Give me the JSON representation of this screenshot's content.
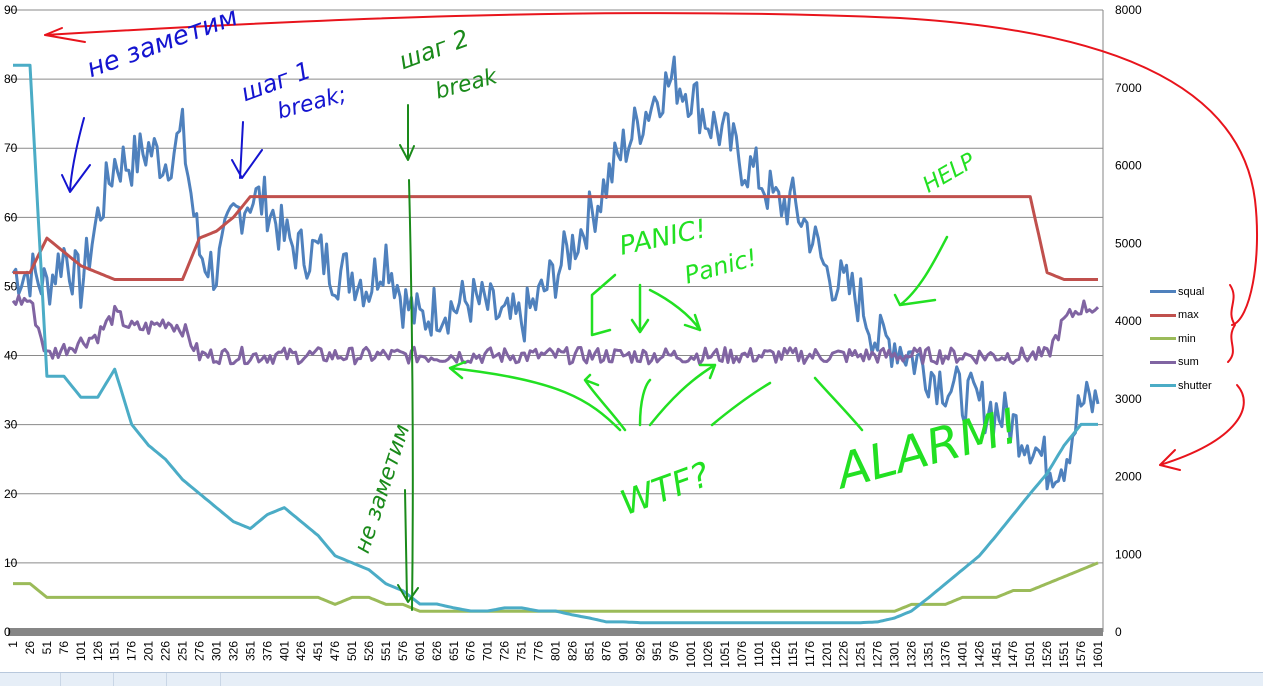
{
  "chart_data": {
    "type": "line",
    "title": "",
    "xlabel": "",
    "ylabel": "",
    "y2label": "",
    "ylim": [
      0,
      90
    ],
    "y2lim": [
      0,
      8000
    ],
    "yticks": [
      0,
      10,
      20,
      30,
      40,
      50,
      60,
      70,
      80,
      90
    ],
    "y2ticks": [
      0,
      1000,
      2000,
      3000,
      4000,
      5000,
      6000,
      7000,
      8000
    ],
    "grid": true,
    "legend_position": "right",
    "categories": [
      1,
      26,
      51,
      76,
      101,
      126,
      151,
      176,
      201,
      226,
      251,
      276,
      301,
      326,
      351,
      376,
      401,
      426,
      451,
      476,
      501,
      526,
      551,
      576,
      601,
      626,
      651,
      676,
      701,
      726,
      751,
      776,
      801,
      826,
      851,
      876,
      901,
      926,
      951,
      976,
      1001,
      1026,
      1051,
      1076,
      1101,
      1126,
      1151,
      1176,
      1201,
      1226,
      1251,
      1276,
      1301,
      1326,
      1351,
      1376,
      1401,
      1426,
      1451,
      1476,
      1501,
      1526,
      1551,
      1576,
      1601
    ],
    "series": [
      {
        "name": "squal",
        "color": "#4f81bd",
        "axis": "primary",
        "values": [
          52,
          52,
          50,
          55,
          50,
          60,
          68,
          68,
          70,
          68,
          72,
          55,
          52,
          60,
          63,
          62,
          57,
          55,
          55,
          52,
          52,
          50,
          55,
          48,
          45,
          47,
          47,
          48,
          47,
          45,
          45,
          48,
          52,
          56,
          60,
          65,
          70,
          74,
          78,
          80,
          78,
          74,
          72,
          68,
          66,
          62,
          62,
          58,
          52,
          50,
          48,
          42,
          42,
          40,
          38,
          36,
          34,
          33,
          32,
          30,
          28,
          24,
          25,
          33,
          33
        ]
      },
      {
        "name": "max",
        "color": "#c0504d",
        "axis": "primary",
        "values": [
          52,
          52,
          57,
          55,
          53,
          52,
          51,
          51,
          51,
          51,
          51,
          57,
          58,
          60,
          63,
          63,
          63,
          63,
          63,
          63,
          63,
          63,
          63,
          63,
          63,
          63,
          63,
          63,
          63,
          63,
          63,
          63,
          63,
          63,
          63,
          63,
          63,
          63,
          63,
          63,
          63,
          63,
          63,
          63,
          63,
          63,
          63,
          63,
          63,
          63,
          63,
          63,
          63,
          63,
          63,
          63,
          63,
          63,
          63,
          63,
          63,
          52,
          51,
          51,
          51
        ]
      },
      {
        "name": "min",
        "color": "#9bbb59",
        "axis": "primary",
        "values": [
          7,
          7,
          5,
          5,
          5,
          5,
          5,
          5,
          5,
          5,
          5,
          5,
          5,
          5,
          5,
          5,
          5,
          5,
          5,
          4,
          5,
          5,
          4,
          4,
          3,
          3,
          3,
          3,
          3,
          3,
          3,
          3,
          3,
          3,
          3,
          3,
          3,
          3,
          3,
          3,
          3,
          3,
          3,
          3,
          3,
          3,
          3,
          3,
          3,
          3,
          3,
          3,
          3,
          4,
          4,
          4,
          5,
          5,
          5,
          6,
          6,
          7,
          8,
          9,
          10
        ]
      },
      {
        "name": "sum",
        "color": "#8064a2",
        "axis": "primary",
        "values": [
          48,
          48,
          40,
          41,
          42,
          43,
          46,
          44,
          44,
          45,
          44,
          40,
          40,
          40,
          40,
          40,
          40,
          40,
          40,
          40,
          40,
          40,
          40,
          40,
          40,
          40,
          40,
          40,
          40,
          40,
          40,
          40,
          40,
          40,
          40,
          40,
          40,
          40,
          40,
          40,
          40,
          40,
          40,
          40,
          40,
          40,
          40,
          40,
          40,
          40,
          40,
          40,
          40,
          40,
          40,
          40,
          40,
          40,
          40,
          40,
          40,
          40,
          45,
          47,
          47
        ]
      },
      {
        "name": "shutter",
        "color": "#4bacc6",
        "axis": "secondary",
        "values": [
          7290,
          7290,
          3290,
          3290,
          3020,
          3020,
          3380,
          2670,
          2400,
          2220,
          1960,
          1780,
          1600,
          1420,
          1330,
          1510,
          1600,
          1420,
          1240,
          980,
          890,
          800,
          620,
          530,
          360,
          360,
          310,
          270,
          270,
          310,
          310,
          270,
          270,
          220,
          180,
          130,
          130,
          120,
          120,
          120,
          120,
          120,
          120,
          120,
          120,
          120,
          120,
          120,
          120,
          120,
          120,
          130,
          180,
          270,
          440,
          620,
          800,
          980,
          1240,
          1510,
          1780,
          2040,
          2400,
          2670,
          2670
        ]
      }
    ]
  },
  "annotations": {
    "ne_zametim_1": "не заметим",
    "step1": "шаг 1",
    "step1_break": "break;",
    "step2": "шаг 2",
    "step2_break": "break",
    "ne_zametim_2": "не заметим",
    "panic1": "PANIC!",
    "panic2": "Panic!",
    "wtf": "WTF?",
    "alarm": "ALARM!",
    "help": "HELP",
    "colors": {
      "red": "#e8141c",
      "blue": "#1414d0",
      "darkgreen": "#1a8a1a",
      "green": "#22e022"
    }
  }
}
